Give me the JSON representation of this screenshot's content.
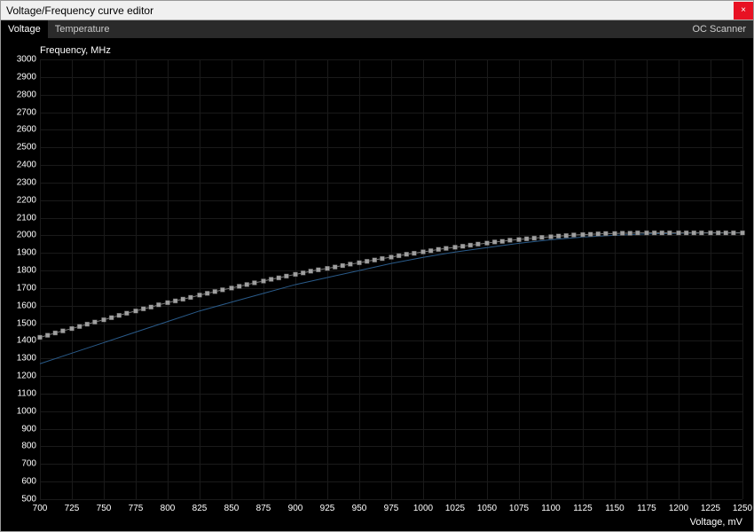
{
  "window": {
    "title": "Voltage/Frequency curve editor",
    "close_label": "×"
  },
  "tabs": {
    "voltage": "Voltage",
    "temperature": "Temperature",
    "oc_scanner": "OC Scanner"
  },
  "chart": {
    "type": "scatter+line",
    "y_axis_label": "Frequency, MHz",
    "x_axis_label": "Voltage, mV",
    "xlim": [
      700,
      1250
    ],
    "ylim": [
      500,
      3000
    ],
    "xtick_step": 25,
    "ytick_step": 100,
    "background_color": "#000000",
    "grid_color": "#1a1a1a",
    "text_color": "#ffffff",
    "marker_color": "#9f9f9f",
    "marker_border": "#4a4a4a",
    "marker_size": 5,
    "baseline_color": "#2a5b8a",
    "baseline_width": 1,
    "axis_fontsize": 10,
    "label_fontsize": 11,
    "curve_points": [
      {
        "x": 700,
        "y": 1420
      },
      {
        "x": 706,
        "y": 1432
      },
      {
        "x": 712,
        "y": 1445
      },
      {
        "x": 718,
        "y": 1457
      },
      {
        "x": 725,
        "y": 1470
      },
      {
        "x": 731,
        "y": 1482
      },
      {
        "x": 737,
        "y": 1495
      },
      {
        "x": 743,
        "y": 1507
      },
      {
        "x": 750,
        "y": 1520
      },
      {
        "x": 756,
        "y": 1532
      },
      {
        "x": 762,
        "y": 1545
      },
      {
        "x": 768,
        "y": 1557
      },
      {
        "x": 775,
        "y": 1570
      },
      {
        "x": 781,
        "y": 1582
      },
      {
        "x": 787,
        "y": 1592
      },
      {
        "x": 793,
        "y": 1605
      },
      {
        "x": 800,
        "y": 1617
      },
      {
        "x": 806,
        "y": 1627
      },
      {
        "x": 812,
        "y": 1637
      },
      {
        "x": 818,
        "y": 1647
      },
      {
        "x": 825,
        "y": 1660
      },
      {
        "x": 831,
        "y": 1670
      },
      {
        "x": 837,
        "y": 1680
      },
      {
        "x": 843,
        "y": 1690
      },
      {
        "x": 850,
        "y": 1700
      },
      {
        "x": 856,
        "y": 1710
      },
      {
        "x": 862,
        "y": 1720
      },
      {
        "x": 868,
        "y": 1730
      },
      {
        "x": 875,
        "y": 1740
      },
      {
        "x": 881,
        "y": 1750
      },
      {
        "x": 887,
        "y": 1758
      },
      {
        "x": 893,
        "y": 1768
      },
      {
        "x": 900,
        "y": 1778
      },
      {
        "x": 906,
        "y": 1786
      },
      {
        "x": 912,
        "y": 1796
      },
      {
        "x": 918,
        "y": 1804
      },
      {
        "x": 925,
        "y": 1812
      },
      {
        "x": 931,
        "y": 1820
      },
      {
        "x": 937,
        "y": 1828
      },
      {
        "x": 943,
        "y": 1836
      },
      {
        "x": 950,
        "y": 1844
      },
      {
        "x": 956,
        "y": 1852
      },
      {
        "x": 962,
        "y": 1860
      },
      {
        "x": 968,
        "y": 1868
      },
      {
        "x": 975,
        "y": 1876
      },
      {
        "x": 981,
        "y": 1884
      },
      {
        "x": 987,
        "y": 1892
      },
      {
        "x": 993,
        "y": 1898
      },
      {
        "x": 1000,
        "y": 1906
      },
      {
        "x": 1006,
        "y": 1912
      },
      {
        "x": 1012,
        "y": 1920
      },
      {
        "x": 1018,
        "y": 1926
      },
      {
        "x": 1025,
        "y": 1932
      },
      {
        "x": 1031,
        "y": 1938
      },
      {
        "x": 1037,
        "y": 1944
      },
      {
        "x": 1043,
        "y": 1950
      },
      {
        "x": 1050,
        "y": 1956
      },
      {
        "x": 1056,
        "y": 1962
      },
      {
        "x": 1062,
        "y": 1966
      },
      {
        "x": 1068,
        "y": 1972
      },
      {
        "x": 1075,
        "y": 1976
      },
      {
        "x": 1081,
        "y": 1980
      },
      {
        "x": 1087,
        "y": 1984
      },
      {
        "x": 1093,
        "y": 1988
      },
      {
        "x": 1100,
        "y": 1992
      },
      {
        "x": 1106,
        "y": 1996
      },
      {
        "x": 1112,
        "y": 1998
      },
      {
        "x": 1118,
        "y": 2002
      },
      {
        "x": 1125,
        "y": 2004
      },
      {
        "x": 1131,
        "y": 2006
      },
      {
        "x": 1137,
        "y": 2008
      },
      {
        "x": 1143,
        "y": 2010
      },
      {
        "x": 1150,
        "y": 2010
      },
      {
        "x": 1156,
        "y": 2012
      },
      {
        "x": 1162,
        "y": 2012
      },
      {
        "x": 1168,
        "y": 2014
      },
      {
        "x": 1175,
        "y": 2014
      },
      {
        "x": 1181,
        "y": 2014
      },
      {
        "x": 1187,
        "y": 2014
      },
      {
        "x": 1193,
        "y": 2014
      },
      {
        "x": 1200,
        "y": 2014
      },
      {
        "x": 1206,
        "y": 2014
      },
      {
        "x": 1212,
        "y": 2014
      },
      {
        "x": 1218,
        "y": 2014
      },
      {
        "x": 1225,
        "y": 2014
      },
      {
        "x": 1231,
        "y": 2014
      },
      {
        "x": 1237,
        "y": 2014
      },
      {
        "x": 1243,
        "y": 2014
      },
      {
        "x": 1250,
        "y": 2014
      }
    ],
    "baseline_points": [
      {
        "x": 700,
        "y": 1270
      },
      {
        "x": 725,
        "y": 1330
      },
      {
        "x": 750,
        "y": 1390
      },
      {
        "x": 775,
        "y": 1450
      },
      {
        "x": 800,
        "y": 1510
      },
      {
        "x": 825,
        "y": 1570
      },
      {
        "x": 850,
        "y": 1620
      },
      {
        "x": 875,
        "y": 1670
      },
      {
        "x": 900,
        "y": 1720
      },
      {
        "x": 925,
        "y": 1760
      },
      {
        "x": 950,
        "y": 1800
      },
      {
        "x": 975,
        "y": 1840
      },
      {
        "x": 1000,
        "y": 1875
      },
      {
        "x": 1025,
        "y": 1905
      },
      {
        "x": 1050,
        "y": 1930
      },
      {
        "x": 1075,
        "y": 1955
      },
      {
        "x": 1100,
        "y": 1975
      },
      {
        "x": 1125,
        "y": 1990
      },
      {
        "x": 1150,
        "y": 2000
      },
      {
        "x": 1175,
        "y": 2008
      },
      {
        "x": 1200,
        "y": 2012
      },
      {
        "x": 1225,
        "y": 2014
      },
      {
        "x": 1250,
        "y": 2014
      }
    ]
  }
}
